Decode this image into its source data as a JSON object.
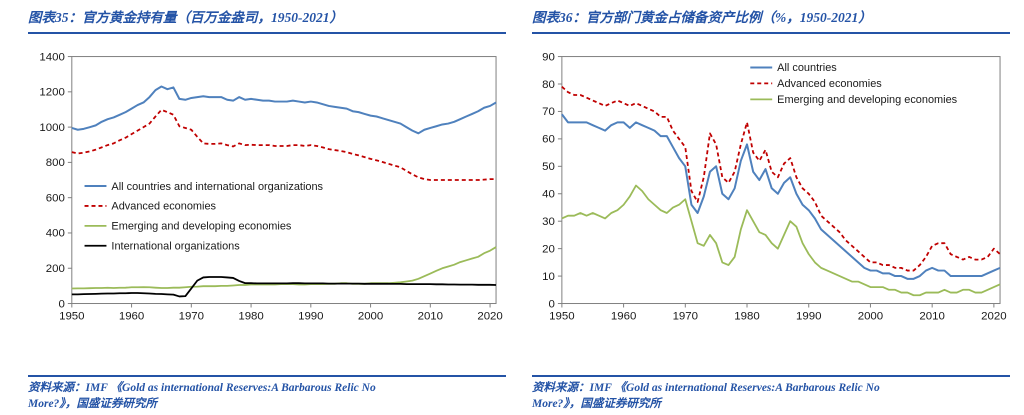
{
  "colors": {
    "accent": "#2453a6",
    "frame": "#808080",
    "tick_text": "#1a1a1a",
    "series_blue": "#4f81bd",
    "series_red": "#c00000",
    "series_green": "#9bbb59",
    "series_black": "#000000"
  },
  "panels": [
    {
      "title": "图表35：官方黄金持有量（百万金盎司，1950-2021）",
      "source": "资料来源：IMF 《Gold as international Reserves:A Barbarous Relic No More?》，国盛证券研究所"
    },
    {
      "title": "图表36：官方部门黄金占储备资产比例（%，1950-2021）",
      "source": "资料来源：IMF 《Gold as international Reserves:A Barbarous Relic No More?》，国盛证券研究所"
    }
  ],
  "chart_data": [
    {
      "type": "line",
      "title": "官方黄金持有量（百万金盎司，1950-2021）",
      "xlabel": "",
      "ylabel": "",
      "grid": false,
      "xlim": [
        1950,
        2021
      ],
      "ylim": [
        0,
        1400
      ],
      "ytick_step": 200,
      "xticks": [
        1950,
        1960,
        1970,
        1980,
        1990,
        2000,
        2010,
        2020
      ],
      "legend_position": "inside-mid-left",
      "legend": {
        "x": 0.03,
        "y": 0.5,
        "row_gap": 20
      },
      "x": [
        1950,
        1951,
        1952,
        1953,
        1954,
        1955,
        1956,
        1957,
        1958,
        1959,
        1960,
        1961,
        1962,
        1963,
        1964,
        1965,
        1966,
        1967,
        1968,
        1969,
        1970,
        1971,
        1972,
        1973,
        1974,
        1975,
        1976,
        1977,
        1978,
        1979,
        1980,
        1981,
        1982,
        1983,
        1984,
        1985,
        1986,
        1987,
        1988,
        1989,
        1990,
        1991,
        1992,
        1993,
        1994,
        1995,
        1996,
        1997,
        1998,
        1999,
        2000,
        2001,
        2002,
        2003,
        2004,
        2005,
        2006,
        2007,
        2008,
        2009,
        2010,
        2011,
        2012,
        2013,
        2014,
        2015,
        2016,
        2017,
        2018,
        2019,
        2020,
        2021
      ],
      "series": [
        {
          "name": "All countries and international organizations",
          "color": "#4f81bd",
          "dash": null,
          "width": 2,
          "values": [
            995,
            985,
            990,
            1000,
            1010,
            1030,
            1045,
            1055,
            1070,
            1085,
            1105,
            1125,
            1140,
            1170,
            1210,
            1230,
            1215,
            1225,
            1160,
            1155,
            1165,
            1170,
            1175,
            1170,
            1170,
            1170,
            1155,
            1150,
            1170,
            1155,
            1160,
            1155,
            1150,
            1150,
            1145,
            1145,
            1145,
            1150,
            1145,
            1140,
            1145,
            1140,
            1130,
            1120,
            1115,
            1110,
            1105,
            1090,
            1085,
            1075,
            1065,
            1060,
            1050,
            1040,
            1030,
            1020,
            1000,
            980,
            965,
            985,
            995,
            1005,
            1015,
            1020,
            1030,
            1045,
            1060,
            1075,
            1090,
            1110,
            1120,
            1140
          ]
        },
        {
          "name": "Advanced economies",
          "color": "#c00000",
          "dash": "4,3",
          "width": 1.8,
          "values": [
            858,
            850,
            855,
            862,
            872,
            885,
            898,
            908,
            925,
            940,
            960,
            980,
            1000,
            1020,
            1060,
            1098,
            1085,
            1070,
            1005,
            995,
            985,
            945,
            908,
            905,
            905,
            908,
            898,
            890,
            908,
            898,
            900,
            898,
            898,
            898,
            893,
            893,
            893,
            898,
            898,
            893,
            898,
            893,
            885,
            875,
            870,
            865,
            858,
            848,
            840,
            830,
            820,
            812,
            802,
            792,
            782,
            772,
            752,
            732,
            715,
            705,
            700,
            700,
            700,
            700,
            700,
            700,
            700,
            700,
            700,
            702,
            705,
            705
          ]
        },
        {
          "name": "Emerging and developing economies",
          "color": "#9bbb59",
          "dash": null,
          "width": 1.8,
          "values": [
            85,
            86,
            86,
            87,
            88,
            88,
            89,
            88,
            89,
            90,
            92,
            92,
            93,
            92,
            90,
            88,
            88,
            90,
            90,
            92,
            95,
            96,
            98,
            98,
            98,
            100,
            100,
            102,
            105,
            105,
            108,
            108,
            108,
            108,
            108,
            110,
            110,
            110,
            108,
            108,
            110,
            110,
            110,
            112,
            112,
            115,
            115,
            112,
            112,
            112,
            115,
            115,
            115,
            115,
            118,
            120,
            125,
            130,
            140,
            155,
            170,
            185,
            200,
            210,
            220,
            235,
            245,
            255,
            265,
            285,
            300,
            320
          ]
        },
        {
          "name": "International organizations",
          "color": "#000000",
          "dash": null,
          "width": 1.8,
          "values": [
            52,
            52,
            53,
            54,
            55,
            56,
            57,
            57,
            58,
            58,
            60,
            60,
            58,
            57,
            55,
            54,
            52,
            50,
            40,
            42,
            85,
            130,
            148,
            150,
            150,
            150,
            148,
            145,
            128,
            116,
            115,
            114,
            114,
            114,
            114,
            114,
            114,
            115,
            115,
            114,
            114,
            114,
            114,
            113,
            113,
            113,
            113,
            113,
            113,
            112,
            112,
            112,
            112,
            112,
            111,
            111,
            110,
            110,
            110,
            110,
            110,
            109,
            109,
            108,
            108,
            107,
            107,
            107,
            106,
            106,
            106,
            105
          ]
        }
      ]
    },
    {
      "type": "line",
      "title": "官方部门黄金占储备资产比例（%，1950-2021）",
      "xlabel": "",
      "ylabel": "",
      "grid": false,
      "xlim": [
        1950,
        2021
      ],
      "ylim": [
        0,
        90
      ],
      "ytick_step": 10,
      "xticks": [
        1950,
        1960,
        1970,
        1980,
        1990,
        2000,
        2010,
        2020
      ],
      "legend_position": "inside-top-right",
      "legend": {
        "x": 0.43,
        "y": 0.02,
        "row_gap": 16
      },
      "x": [
        1950,
        1951,
        1952,
        1953,
        1954,
        1955,
        1956,
        1957,
        1958,
        1959,
        1960,
        1961,
        1962,
        1963,
        1964,
        1965,
        1966,
        1967,
        1968,
        1969,
        1970,
        1971,
        1972,
        1973,
        1974,
        1975,
        1976,
        1977,
        1978,
        1979,
        1980,
        1981,
        1982,
        1983,
        1984,
        1985,
        1986,
        1987,
        1988,
        1989,
        1990,
        1991,
        1992,
        1993,
        1994,
        1995,
        1996,
        1997,
        1998,
        1999,
        2000,
        2001,
        2002,
        2003,
        2004,
        2005,
        2006,
        2007,
        2008,
        2009,
        2010,
        2011,
        2012,
        2013,
        2014,
        2015,
        2016,
        2017,
        2018,
        2019,
        2020,
        2021
      ],
      "series": [
        {
          "name": "All countries",
          "color": "#4f81bd",
          "dash": null,
          "width": 2,
          "values": [
            69,
            66,
            66,
            66,
            66,
            65,
            64,
            63,
            65,
            66,
            66,
            64,
            66,
            65,
            64,
            63,
            61,
            61,
            57,
            53,
            50,
            36,
            33,
            39,
            48,
            50,
            40,
            38,
            42,
            52,
            58,
            48,
            45,
            49,
            42,
            40,
            44,
            46,
            40,
            36,
            34,
            31,
            27,
            25,
            23,
            21,
            19,
            17,
            15,
            13,
            12,
            12,
            11,
            11,
            10,
            10,
            9,
            9,
            10,
            12,
            13,
            12,
            12,
            10,
            10,
            10,
            10,
            10,
            10,
            11,
            12,
            13
          ]
        },
        {
          "name": "Advanced economies",
          "color": "#c00000",
          "dash": "4,3",
          "width": 1.8,
          "values": [
            79,
            77,
            76,
            76,
            75,
            74,
            73,
            72,
            73,
            74,
            73,
            72,
            73,
            72,
            71,
            70,
            68,
            68,
            63,
            60,
            57,
            41,
            37,
            46,
            62,
            58,
            46,
            44,
            48,
            58,
            66,
            55,
            52,
            56,
            48,
            46,
            51,
            53,
            46,
            42,
            40,
            37,
            32,
            30,
            28,
            26,
            23,
            21,
            19,
            17,
            15,
            15,
            14,
            14,
            13,
            13,
            12,
            12,
            14,
            17,
            21,
            22,
            22,
            18,
            17,
            16,
            17,
            16,
            16,
            17,
            20,
            18
          ]
        },
        {
          "name": "Emerging and developing economies",
          "color": "#9bbb59",
          "dash": null,
          "width": 1.8,
          "values": [
            31,
            32,
            32,
            33,
            32,
            33,
            32,
            31,
            33,
            34,
            36,
            39,
            43,
            41,
            38,
            36,
            34,
            33,
            35,
            36,
            38,
            30,
            22,
            21,
            25,
            22,
            15,
            14,
            17,
            27,
            34,
            30,
            26,
            25,
            22,
            20,
            25,
            30,
            28,
            22,
            18,
            15,
            13,
            12,
            11,
            10,
            9,
            8,
            8,
            7,
            6,
            6,
            6,
            5,
            5,
            4,
            4,
            3,
            3,
            4,
            4,
            4,
            5,
            4,
            4,
            5,
            5,
            4,
            4,
            5,
            6,
            7
          ]
        }
      ]
    }
  ]
}
